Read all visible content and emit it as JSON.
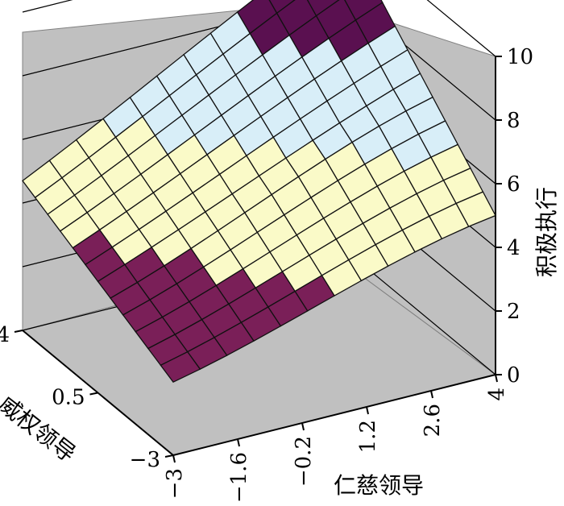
{
  "chart_data": {
    "type": "surface",
    "title": "",
    "xlabel": "仁慈领导",
    "ylabel": "威权领导",
    "zlabel": "积极执行",
    "x_ticks": [
      "−3",
      "−1.6",
      "−0.2",
      "1.2",
      "2.6",
      "4"
    ],
    "y_ticks": [
      "−3",
      "0.5",
      "4"
    ],
    "z_ticks": [
      "0",
      "2",
      "4",
      "6",
      "8",
      "10"
    ],
    "xlim": [
      -3,
      4
    ],
    "ylim": [
      -3,
      4
    ],
    "zlim": [
      0,
      10
    ],
    "grid": true,
    "color_bands": [
      {
        "range": [
          2,
          4
        ],
        "color": "#7a1f58"
      },
      {
        "range": [
          4,
          6
        ],
        "color": "#fafac8"
      },
      {
        "range": [
          6,
          8
        ],
        "color": "#d8eef8"
      },
      {
        "range": [
          8,
          10
        ],
        "color": "#5a1050"
      }
    ],
    "surface_corners": {
      "x_low_y_low": 2.3,
      "x_high_y_low": 5.0,
      "x_low_y_high": 4.7,
      "x_high_y_high": 10.0
    }
  }
}
